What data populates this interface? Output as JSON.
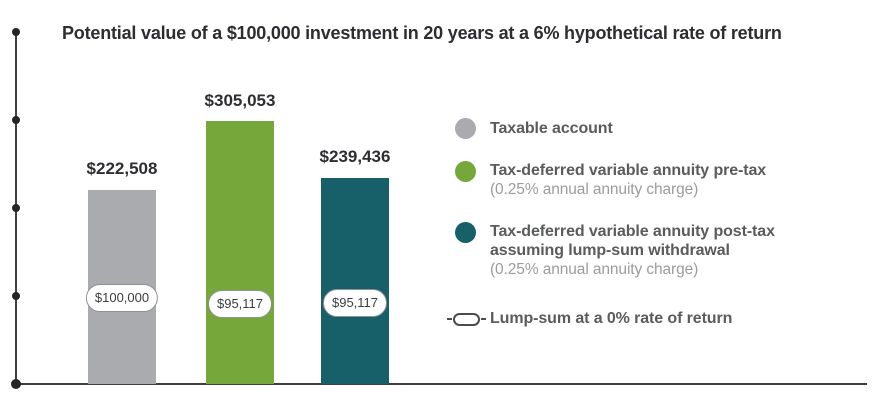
{
  "title": "Potential value of a $100,000 investment in 20 years at a 6% hypothetical rate of return",
  "colors": {
    "taxable_gray": "#a9abae",
    "pre_tax_green": "#76a73a",
    "post_tax_teal": "#176069",
    "axis": "#3e3f41",
    "title_text": "#2d2e31",
    "legend_text": "#595b5d",
    "legend_subtext": "#9a9c9e"
  },
  "bars": [
    {
      "name": "taxable-account",
      "value_label": "$222,508",
      "lump_sum_label": "$100,000",
      "color": "#a9abae"
    },
    {
      "name": "annuity-pre-tax",
      "value_label": "$305,053",
      "lump_sum_label": "$95,117",
      "color": "#76a73a"
    },
    {
      "name": "annuity-post-tax",
      "value_label": "$239,436",
      "lump_sum_label": "$95,117",
      "color": "#176069"
    }
  ],
  "legend": {
    "items": [
      {
        "line1": "Taxable account",
        "color": "#a9abae"
      },
      {
        "line1": "Tax-deferred variable annuity pre-tax",
        "sub": "(0.25% annual annuity charge)",
        "color": "#76a73a"
      },
      {
        "line1": "Tax-deferred variable annuity post-tax",
        "line2": "assuming lump-sum withdrawal",
        "sub": "(0.25% annual annuity charge)",
        "color": "#176069"
      },
      {
        "line1": "Lump-sum at a 0% rate of return",
        "icon": "lump-sum-pill-icon"
      }
    ]
  },
  "chart_data": {
    "type": "bar",
    "title": "Potential value of a $100,000 investment in 20 years at a 6% hypothetical rate of return",
    "categories": [
      "Taxable account",
      "Tax-deferred variable annuity pre-tax (0.25% annual annuity charge)",
      "Tax-deferred variable annuity post-tax assuming lump-sum withdrawal (0.25% annual annuity charge)"
    ],
    "series": [
      {
        "name": "Potential value in 20 years",
        "values": [
          222508,
          305053,
          239436
        ]
      },
      {
        "name": "Lump-sum at a 0% rate of return",
        "values": [
          100000,
          95117,
          95117
        ]
      }
    ],
    "value_labels": [
      "$222,508",
      "$305,053",
      "$239,436"
    ],
    "lump_sum_labels": [
      "$100,000",
      "$95,117",
      "$95,117"
    ],
    "xlabel": "",
    "ylabel": "",
    "ylim": [
      0,
      340000
    ],
    "grid": false,
    "legend_position": "right",
    "notes": "Y-axis shown as a line with unlabeled dot tick marks; lump-sum series rendered as white pill badges inside each bar"
  }
}
